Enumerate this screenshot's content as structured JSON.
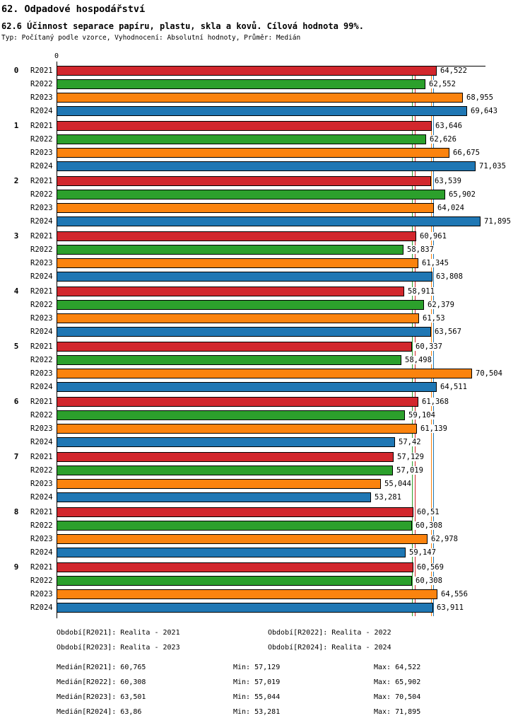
{
  "header": {
    "title1": "62. Odpadové hospodářství",
    "title2": "62.6 Účinnost separace papíru, plastu, skla a kovů. Cílová hodnota 99%.",
    "subtitle": "Typ: Počítaný podle vzorce, Vyhodnocení: Absolutní hodnoty, Průměr: Medián"
  },
  "chart_data": {
    "type": "bar",
    "orientation": "horizontal",
    "title": "62.6 Účinnost separace papíru, plastu, skla a kovů. Cílová hodnota 99%.",
    "xlabel": "",
    "ylabel": "",
    "xlim": [
      0,
      72.75
    ],
    "origin_tick_label": "0",
    "grid": false,
    "legend_position": "bottom",
    "categories": [
      "0",
      "1",
      "2",
      "3",
      "4",
      "5",
      "6",
      "7",
      "8",
      "9"
    ],
    "series_meta": [
      {
        "name": "R2021",
        "color": "#d2272d",
        "median": 60.765,
        "min": 57.129,
        "max": 64.522
      },
      {
        "name": "R2022",
        "color": "#2ca02c",
        "median": 60.308,
        "min": 57.019,
        "max": 65.902
      },
      {
        "name": "R2023",
        "color": "#fb830e",
        "median": 63.501,
        "min": 55.044,
        "max": 70.504
      },
      {
        "name": "R2024",
        "color": "#1f77b4",
        "median": 63.86,
        "min": 53.281,
        "max": 71.895
      }
    ],
    "groups": [
      {
        "label": "0",
        "values": [
          64.522,
          62.552,
          68.955,
          69.643
        ],
        "labels": [
          "64,522",
          "62,552",
          "68,955",
          "69,643"
        ]
      },
      {
        "label": "1",
        "values": [
          63.646,
          62.626,
          66.675,
          71.035
        ],
        "labels": [
          "63,646",
          "62,626",
          "66,675",
          "71,035"
        ]
      },
      {
        "label": "2",
        "values": [
          63.539,
          65.902,
          64.024,
          71.895
        ],
        "labels": [
          "63,539",
          "65,902",
          "64,024",
          "71,895"
        ]
      },
      {
        "label": "3",
        "values": [
          60.961,
          58.837,
          61.345,
          63.808
        ],
        "labels": [
          "60,961",
          "58,837",
          "61,345",
          "63,808"
        ]
      },
      {
        "label": "4",
        "values": [
          58.911,
          62.379,
          61.53,
          63.567
        ],
        "labels": [
          "58,911",
          "62,379",
          "61,53",
          "63,567"
        ]
      },
      {
        "label": "5",
        "values": [
          60.337,
          58.498,
          70.504,
          64.511
        ],
        "labels": [
          "60,337",
          "58,498",
          "70,504",
          "64,511"
        ]
      },
      {
        "label": "6",
        "values": [
          61.368,
          59.104,
          61.139,
          57.42
        ],
        "labels": [
          "61,368",
          "59,104",
          "61,139",
          "57,42"
        ]
      },
      {
        "label": "7",
        "values": [
          57.129,
          57.019,
          55.044,
          53.281
        ],
        "labels": [
          "57,129",
          "57,019",
          "55,044",
          "53,281"
        ]
      },
      {
        "label": "8",
        "values": [
          60.51,
          60.308,
          62.978,
          59.147
        ],
        "labels": [
          "60,51",
          "60,308",
          "62,978",
          "59,147"
        ]
      },
      {
        "label": "9",
        "values": [
          60.569,
          60.308,
          64.556,
          63.911
        ],
        "labels": [
          "60,569",
          "60,308",
          "64,556",
          "63,911"
        ]
      }
    ]
  },
  "legend": {
    "items": [
      {
        "text": "Období[R2021]: Realita - 2021"
      },
      {
        "text": "Období[R2022]: Realita - 2022"
      },
      {
        "text": "Období[R2023]: Realita - 2023"
      },
      {
        "text": "Období[R2024]: Realita - 2024"
      }
    ]
  },
  "stats": {
    "rows": [
      {
        "median": "Medián[R2021]: 60,765",
        "min": "Min: 57,129",
        "max": "Max: 64,522"
      },
      {
        "median": "Medián[R2022]: 60,308",
        "min": "Min: 57,019",
        "max": "Max: 65,902"
      },
      {
        "median": "Medián[R2023]: 63,501",
        "min": "Min: 55,044",
        "max": "Max: 70,504"
      },
      {
        "median": "Medián[R2024]: 63,86",
        "min": "Min: 53,281",
        "max": "Max: 71,895"
      }
    ]
  }
}
